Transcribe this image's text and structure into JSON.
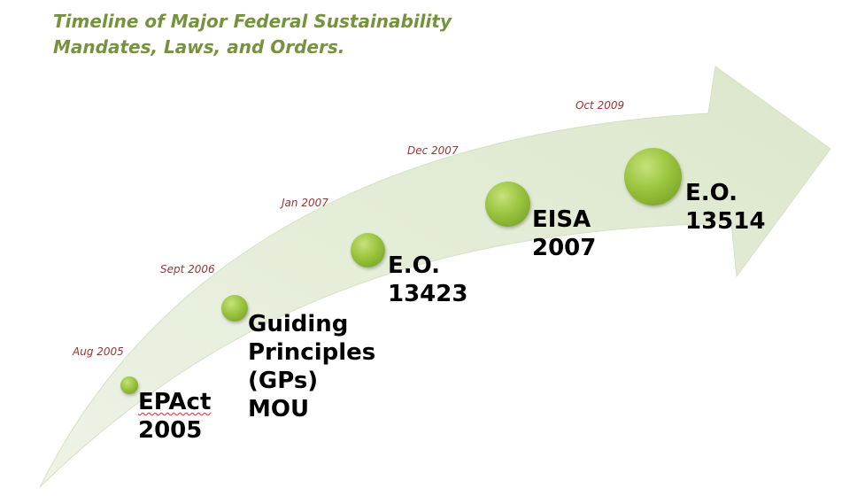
{
  "title": {
    "line1": "Timeline of Major Federal Sustainability",
    "line2": "Mandates, Laws, and Orders."
  },
  "colors": {
    "title": "#76923c",
    "date": "#943634",
    "arrow_fill": "#e1ebd3",
    "node": "#8db53a"
  },
  "milestones": [
    {
      "date": "Aug 2005",
      "label_lines": [
        "EPAct",
        "2005"
      ]
    },
    {
      "date": "Sept 2006",
      "label_lines": [
        "Guiding",
        "Principles",
        "(GPs)",
        "MOU"
      ]
    },
    {
      "date": "Jan 2007",
      "label_lines": [
        "E.O.",
        "13423"
      ]
    },
    {
      "date": "Dec 2007",
      "label_lines": [
        "EISA",
        "2007"
      ]
    },
    {
      "date": "Oct 2009",
      "label_lines": [
        "E.O.",
        "13514"
      ]
    }
  ]
}
